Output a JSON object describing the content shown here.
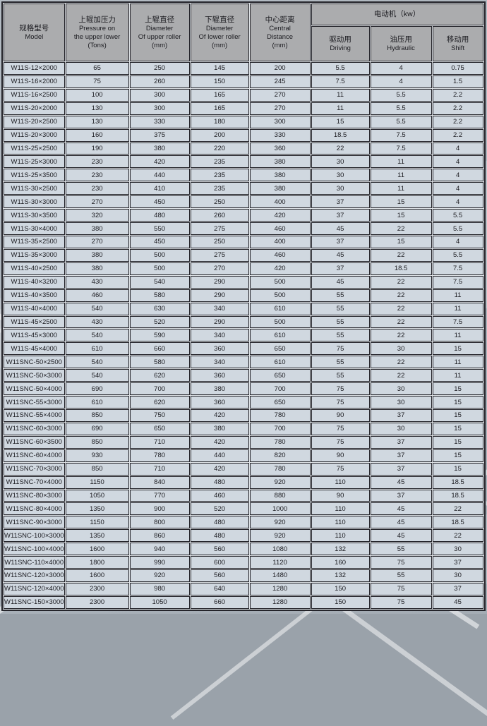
{
  "colors": {
    "page_bg": "#aab2ba",
    "cell_bg": "#cdd6de",
    "header_bg": "#a7a8aa",
    "border": "#26262c",
    "streak": "#ffffff"
  },
  "table": {
    "header": {
      "model": {
        "zh": "规格型号",
        "en": "Model"
      },
      "pressure": {
        "zh": "上辊加压力",
        "en1": "Pressure on",
        "en2": "the upper lower",
        "en3": "(Tons)"
      },
      "upper_roller": {
        "zh": "上辊直径",
        "en1": "Diameter",
        "en2": "Of upper roller",
        "en3": "(mm)"
      },
      "lower_roller": {
        "zh": "下辊直径",
        "en1": "Diameter",
        "en2": "Of lower roller",
        "en3": "(mm)"
      },
      "central": {
        "zh": "中心距离",
        "en1": "Central",
        "en2": "Distance",
        "en3": "(mm)"
      },
      "motor_group": {
        "label": "电动机（kw）"
      },
      "driving": {
        "zh": "驱动用",
        "en": "Driving"
      },
      "hydraulic": {
        "zh": "油压用",
        "en": "Hydraulic"
      },
      "shift": {
        "zh": "移动用",
        "en": "Shift"
      }
    },
    "rows": [
      [
        "W11S-12×2000",
        "65",
        "250",
        "145",
        "200",
        "5.5",
        "4",
        "0.75"
      ],
      [
        "W11S-16×2000",
        "75",
        "260",
        "150",
        "245",
        "7.5",
        "4",
        "1.5"
      ],
      [
        "W11S-16×2500",
        "100",
        "300",
        "165",
        "270",
        "11",
        "5.5",
        "2.2"
      ],
      [
        "W11S-20×2000",
        "130",
        "300",
        "165",
        "270",
        "11",
        "5.5",
        "2.2"
      ],
      [
        "W11S-20×2500",
        "130",
        "330",
        "180",
        "300",
        "15",
        "5.5",
        "2.2"
      ],
      [
        "W11S-20×3000",
        "160",
        "375",
        "200",
        "330",
        "18.5",
        "7.5",
        "2.2"
      ],
      [
        "W11S-25×2500",
        "190",
        "380",
        "220",
        "360",
        "22",
        "7.5",
        "4"
      ],
      [
        "W11S-25×3000",
        "230",
        "420",
        "235",
        "380",
        "30",
        "11",
        "4"
      ],
      [
        "W11S-25×3500",
        "230",
        "440",
        "235",
        "380",
        "30",
        "11",
        "4"
      ],
      [
        "W11S-30×2500",
        "230",
        "410",
        "235",
        "380",
        "30",
        "11",
        "4"
      ],
      [
        "W11S-30×3000",
        "270",
        "450",
        "250",
        "400",
        "37",
        "15",
        "4"
      ],
      [
        "W11S-30×3500",
        "320",
        "480",
        "260",
        "420",
        "37",
        "15",
        "5.5"
      ],
      [
        "W11S-30×4000",
        "380",
        "550",
        "275",
        "460",
        "45",
        "22",
        "5.5"
      ],
      [
        "W11S-35×2500",
        "270",
        "450",
        "250",
        "400",
        "37",
        "15",
        "4"
      ],
      [
        "W11S-35×3000",
        "380",
        "500",
        "275",
        "460",
        "45",
        "22",
        "5.5"
      ],
      [
        "W11S-40×2500",
        "380",
        "500",
        "270",
        "420",
        "37",
        "18.5",
        "7.5"
      ],
      [
        "W11S-40×3200",
        "430",
        "540",
        "290",
        "500",
        "45",
        "22",
        "7.5"
      ],
      [
        "W11S-40×3500",
        "460",
        "580",
        "290",
        "500",
        "55",
        "22",
        "11"
      ],
      [
        "W11S-40×4000",
        "540",
        "630",
        "340",
        "610",
        "55",
        "22",
        "11"
      ],
      [
        "W11S-45×2500",
        "430",
        "520",
        "290",
        "500",
        "55",
        "22",
        "7.5"
      ],
      [
        "W11S-45×3000",
        "540",
        "590",
        "340",
        "610",
        "55",
        "22",
        "11"
      ],
      [
        "W11S-45×4000",
        "610",
        "660",
        "360",
        "650",
        "75",
        "30",
        "15"
      ],
      [
        "W11SNC-50×2500",
        "540",
        "580",
        "340",
        "610",
        "55",
        "22",
        "11"
      ],
      [
        "W11SNC-50×3000",
        "540",
        "620",
        "360",
        "650",
        "55",
        "22",
        "11"
      ],
      [
        "W11SNC-50×4000",
        "690",
        "700",
        "380",
        "700",
        "75",
        "30",
        "15"
      ],
      [
        "W11SNC-55×3000",
        "610",
        "620",
        "360",
        "650",
        "75",
        "30",
        "15"
      ],
      [
        "W11SNC-55×4000",
        "850",
        "750",
        "420",
        "780",
        "90",
        "37",
        "15"
      ],
      [
        "W11SNC-60×3000",
        "690",
        "650",
        "380",
        "700",
        "75",
        "30",
        "15"
      ],
      [
        "W11SNC-60×3500",
        "850",
        "710",
        "420",
        "780",
        "75",
        "37",
        "15"
      ],
      [
        "W11SNC-60×4000",
        "930",
        "780",
        "440",
        "820",
        "90",
        "37",
        "15"
      ],
      [
        "W11SNC-70×3000",
        "850",
        "710",
        "420",
        "780",
        "75",
        "37",
        "15"
      ],
      [
        "W11SNC-70×4000",
        "1150",
        "840",
        "480",
        "920",
        "110",
        "45",
        "18.5"
      ],
      [
        "W11SNC-80×3000",
        "1050",
        "770",
        "460",
        "880",
        "90",
        "37",
        "18.5"
      ],
      [
        "W11SNC-80×4000",
        "1350",
        "900",
        "520",
        "1000",
        "110",
        "45",
        "22"
      ],
      [
        "W11SNC-90×3000",
        "1150",
        "800",
        "480",
        "920",
        "110",
        "45",
        "18.5"
      ],
      [
        "W11SNC-100×3000",
        "1350",
        "860",
        "480",
        "920",
        "110",
        "45",
        "22"
      ],
      [
        "W11SNC-100×4000",
        "1600",
        "940",
        "560",
        "1080",
        "132",
        "55",
        "30"
      ],
      [
        "W11SNC-110×4000",
        "1800",
        "990",
        "600",
        "1120",
        "160",
        "75",
        "37"
      ],
      [
        "W11SNC-120×3000",
        "1600",
        "920",
        "560",
        "1480",
        "132",
        "55",
        "30"
      ],
      [
        "W11SNC-120×4000",
        "2300",
        "980",
        "640",
        "1280",
        "150",
        "75",
        "37"
      ],
      [
        "W11SNC-150×3000",
        "2300",
        "1050",
        "660",
        "1280",
        "150",
        "75",
        "45"
      ]
    ]
  }
}
